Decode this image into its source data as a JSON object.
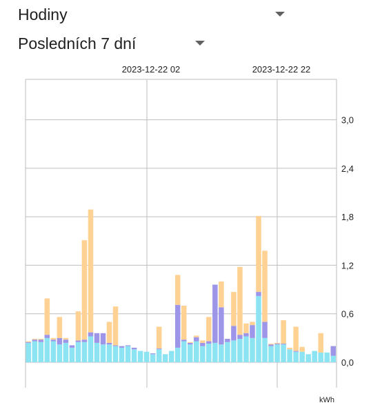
{
  "controls": {
    "period_label": "Hodiny",
    "range_label": "Posledních 7 dní"
  },
  "icons": {
    "period_caret": "chevron-down-icon",
    "range_caret": "chevron-down-icon"
  },
  "colors": {
    "base": "#8ce4f2",
    "mid": "#9d95e8",
    "top": "#ffd294",
    "grid": "#bdbdbd"
  },
  "chart_data": {
    "type": "bar",
    "stacked": true,
    "top_labels": [
      "2023-12-22 02",
      "2023-12-22 22"
    ],
    "y_ticks": [
      "0,0",
      "0,6",
      "1,2",
      "1,8",
      "2,4",
      "3,0"
    ],
    "unit": "kWh",
    "ylim": [
      0,
      3.5
    ],
    "grid": true,
    "series": [
      {
        "values": [
          0.24,
          0.26,
          0.25,
          0.3,
          0.26,
          0.22,
          0.24,
          0.18,
          0.25,
          0.25,
          0.32,
          0.24,
          0.22,
          0.22,
          0.2,
          0.18,
          0.2,
          0.16,
          0.14,
          0.13,
          0.1,
          0.16,
          0.1,
          0.14,
          0.18,
          0.26,
          0.22,
          0.26,
          0.2,
          0.23,
          0.24,
          0.22,
          0.25,
          0.27,
          0.29,
          0.32,
          0.3,
          0.82,
          0.3,
          0.2,
          0.22,
          0.22,
          0.16,
          0.13,
          0.13,
          0.1,
          0.14,
          0.12,
          0.12,
          0.08
        ]
      },
      {
        "values": [
          0.01,
          0.02,
          0.03,
          0.04,
          0.02,
          0.08,
          0.04,
          0.03,
          0.02,
          0.03,
          0.05,
          0.12,
          0.14,
          0.02,
          0.01,
          0.02,
          0.01,
          0.02,
          0.0,
          0.0,
          0.01,
          0.01,
          0.0,
          0.0,
          0.53,
          0.02,
          0.02,
          0.05,
          0.04,
          0.03,
          0.72,
          0.46,
          0.04,
          0.18,
          0.05,
          0.04,
          0.16,
          0.05,
          0.2,
          0.02,
          0.01,
          0.01,
          0.0,
          0.01,
          0.0,
          0.0,
          0.0,
          0.0,
          0.0,
          0.12
        ]
      },
      {
        "values": [
          0.01,
          0.01,
          0.01,
          0.45,
          0.02,
          0.26,
          0.02,
          0.0,
          0.36,
          1.23,
          1.52,
          0.0,
          0.0,
          0.26,
          0.48,
          0.0,
          0.0,
          0.0,
          0.0,
          0.0,
          0.0,
          0.27,
          0.0,
          0.0,
          0.37,
          0.42,
          0.01,
          0.02,
          0.03,
          0.3,
          0.0,
          0.32,
          0.0,
          0.42,
          0.84,
          0.12,
          0.04,
          0.94,
          0.88,
          0.01,
          0.01,
          0.29,
          0.02,
          0.3,
          0.06,
          0.0,
          0.0,
          0.24,
          0.0,
          0.0
        ]
      }
    ]
  }
}
